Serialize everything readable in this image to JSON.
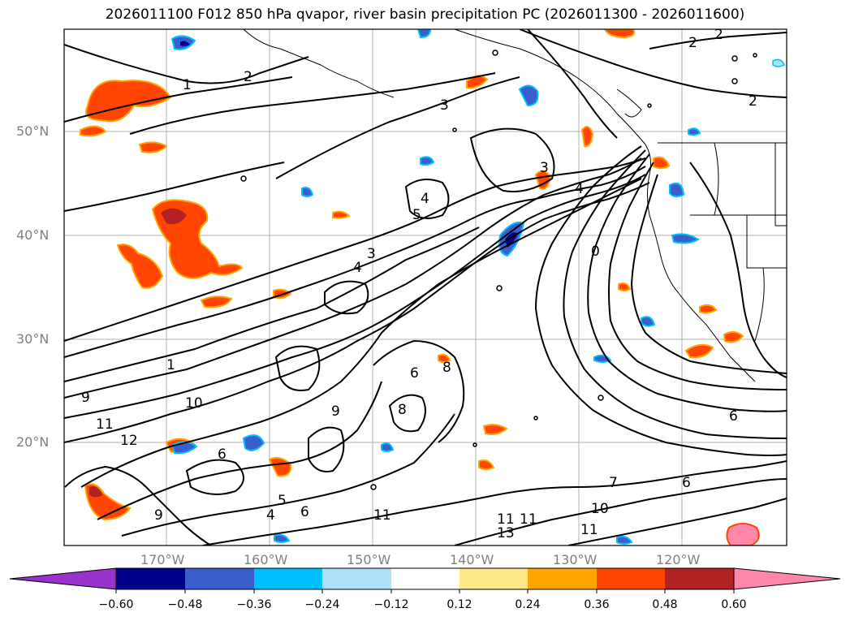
{
  "title": "2026011100 F012 850 hPa qvapor, river basin precipitation PC (2026011300 - 2026011600)",
  "map": {
    "lat_labels": [
      "50°N",
      "40°N",
      "30°N",
      "20°N"
    ],
    "lon_labels": [
      "170°W",
      "160°W",
      "150°W",
      "140°W",
      "130°W",
      "120°W"
    ],
    "contour_labels": [
      "1",
      "2",
      "2",
      "2",
      "2",
      "3",
      "3",
      "4",
      "4",
      "5",
      "3",
      "4",
      "0",
      "1",
      "9",
      "10",
      "11",
      "12",
      "11",
      "6",
      "6",
      "8",
      "8",
      "9",
      "5",
      "4",
      "6",
      "11",
      "7",
      "6",
      "10",
      "11",
      "11",
      "13",
      "9",
      "6"
    ]
  },
  "colorbar": {
    "colors": [
      "#9932cc",
      "#00008b",
      "#3a5fcd",
      "#00bfff",
      "#afe0fa",
      "#ffffff",
      "#ffe88a",
      "#ffa500",
      "#ff4500",
      "#b22222",
      "#ff88aa"
    ],
    "tick_labels": [
      "−0.60",
      "−0.48",
      "−0.36",
      "−0.24",
      "−0.12",
      "0.12",
      "0.24",
      "0.36",
      "0.48",
      "0.60"
    ]
  }
}
